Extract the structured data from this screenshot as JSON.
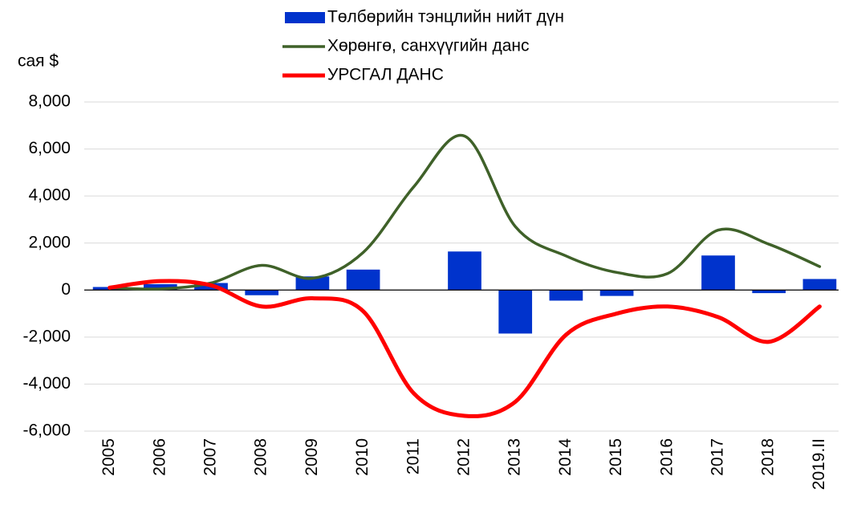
{
  "chart_data": {
    "type": "bar_line",
    "y_label": "сая $",
    "categories": [
      "2005",
      "2006",
      "2007",
      "2008",
      "2009",
      "2010",
      "2011",
      "2012",
      "2013",
      "2014",
      "2015",
      "2016",
      "2017",
      "2018",
      "2019.II"
    ],
    "series": [
      {
        "name": "Төлбөрийн тэнцлийн нийт дүн",
        "type": "bar",
        "color": "#0033cc",
        "values": [
          130,
          250,
          300,
          -220,
          580,
          870,
          0,
          1640,
          -1850,
          -450,
          -250,
          0,
          1470,
          -130,
          470
        ]
      },
      {
        "name": "Хөрөнгө, санхүүгийн данс",
        "type": "line",
        "color": "#3f6129",
        "values": [
          100,
          50,
          300,
          1050,
          500,
          1600,
          4400,
          6550,
          2700,
          1450,
          750,
          700,
          2550,
          1950,
          1000
        ]
      },
      {
        "name": "УРСГАЛ ДАНС",
        "type": "line",
        "color": "#ff0000",
        "values": [
          100,
          380,
          200,
          -700,
          -350,
          -900,
          -4400,
          -5350,
          -4750,
          -1900,
          -1000,
          -700,
          -1150,
          -2200,
          -700
        ]
      }
    ],
    "ylim": [
      -6000,
      8000
    ],
    "yticks": [
      {
        "value": -6000,
        "label": "-6,000"
      },
      {
        "value": -4000,
        "label": "-4,000"
      },
      {
        "value": -2000,
        "label": "-2,000"
      },
      0,
      {
        "value": 2000,
        "label": "2,000"
      },
      {
        "value": 4000,
        "label": "4,000"
      },
      {
        "value": 6000,
        "label": "6,000"
      },
      {
        "value": 8000,
        "label": "8,000"
      }
    ],
    "grid": true
  }
}
